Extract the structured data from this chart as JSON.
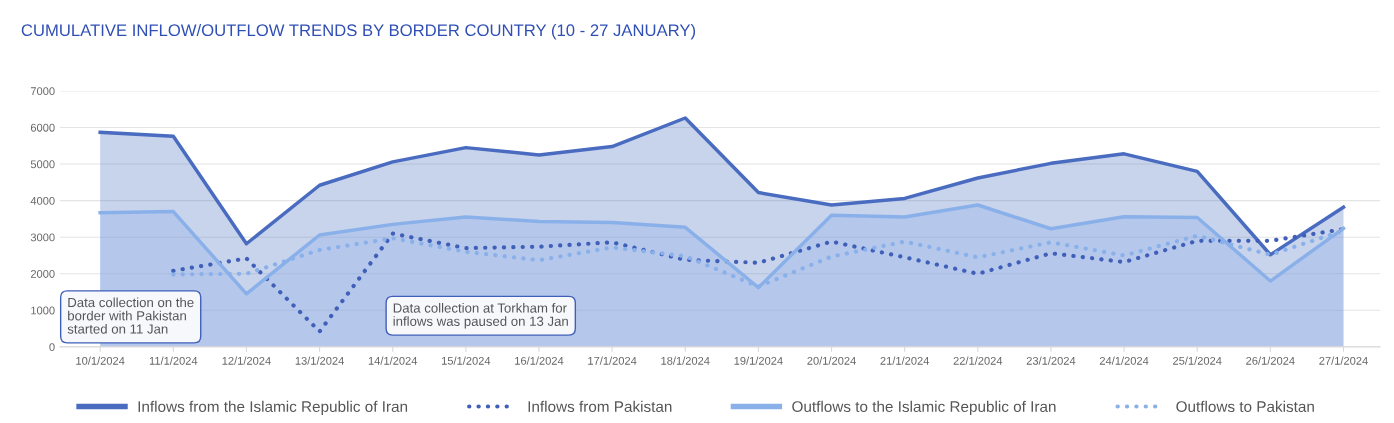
{
  "chart_data": {
    "type": "line",
    "title": "CUMULATIVE INFLOW/OUTFLOW TRENDS BY BORDER COUNTRY (10 - 27 JANUARY)",
    "categories": [
      "10/1/2024",
      "11/1/2024",
      "12/1/2024",
      "13/1/2024",
      "14/1/2024",
      "15/1/2024",
      "16/1/2024",
      "17/1/2024",
      "18/1/2024",
      "19/1/2024",
      "20/1/2024",
      "21/1/2024",
      "22/1/2024",
      "23/1/2024",
      "24/1/2024",
      "25/1/2024",
      "26/1/2024",
      "27/1/2024"
    ],
    "series": [
      {
        "name": "Inflows from the Islamic Republic of Iran",
        "type": "area",
        "color": "#4a6cc0",
        "line_style": "solid",
        "values": [
          5870,
          5760,
          2820,
          4420,
          5060,
          5450,
          5250,
          5480,
          6260,
          4220,
          3880,
          4060,
          4620,
          5020,
          5280,
          4800,
          2520,
          3820
        ]
      },
      {
        "name": "Inflows from Pakistan",
        "color": "#3f5fb8",
        "line_style": "dotted",
        "values": [
          null,
          2080,
          2420,
          420,
          3100,
          2700,
          2740,
          2860,
          2380,
          2300,
          2880,
          2450,
          2000,
          2560,
          2320,
          2900,
          2900,
          3220
        ]
      },
      {
        "name": "Outflows to the Islamic Republic of Iran",
        "type": "area",
        "color": "#8ab0ea",
        "line_style": "solid",
        "values": [
          3670,
          3700,
          1450,
          3060,
          3350,
          3550,
          3430,
          3400,
          3270,
          1620,
          3600,
          3550,
          3880,
          3230,
          3560,
          3540,
          1800,
          3240
        ]
      },
      {
        "name": "Outflows to Pakistan",
        "color": "#8ab0ea",
        "line_style": "dotted",
        "values": [
          null,
          1980,
          2000,
          2650,
          2970,
          2600,
          2370,
          2720,
          2480,
          1650,
          2470,
          2880,
          2450,
          2860,
          2500,
          3040,
          2520,
          3180
        ]
      }
    ],
    "ylim": [
      0,
      7000
    ],
    "yticks": [
      0,
      1000,
      2000,
      3000,
      4000,
      5000,
      6000,
      7000
    ],
    "grid": "y",
    "legend": "bottom",
    "annotations": [
      "Data collection on the\nborder with Pakistan\nstarted on 11 Jan",
      "Data collection at Torkham for\ninflows was paused on 13 Jan"
    ]
  }
}
